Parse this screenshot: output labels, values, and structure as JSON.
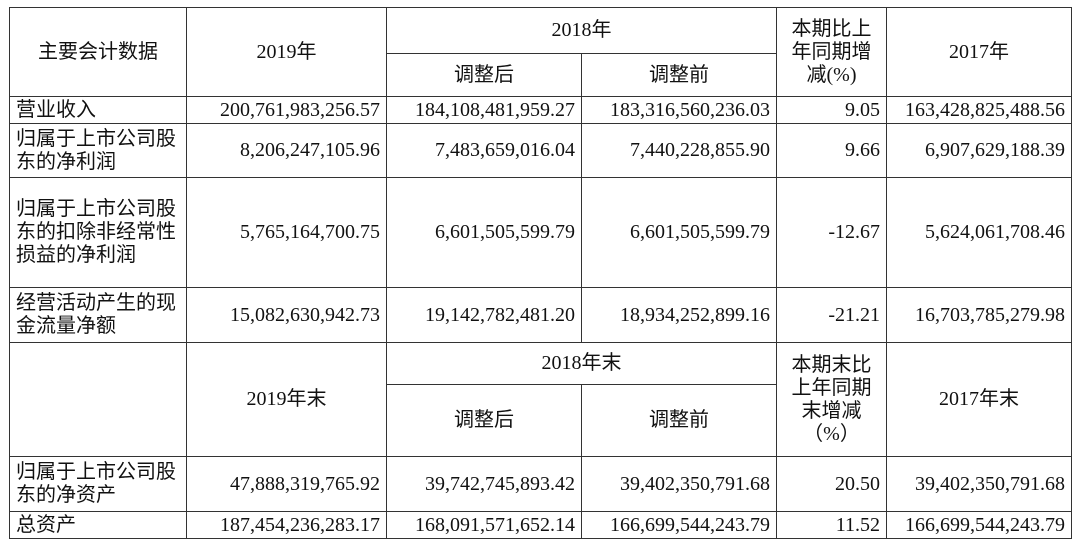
{
  "header1": {
    "col0": "主要会计数据",
    "col1": "2019年",
    "col2_group": "2018年",
    "col2a": "调整后",
    "col2b": "调整前",
    "col3": "本期比上年同期增减(%)",
    "col4": "2017年"
  },
  "header2": {
    "col1": "2019年末",
    "col2_group": "2018年末",
    "col2a": "调整后",
    "col2b": "调整前",
    "col3": "本期末比上年同期末增减（%）",
    "col4": "2017年末"
  },
  "rows1": [
    {
      "label": "营业收入",
      "v2019": "200,761,983,256.57",
      "v2018a": "184,108,481,959.27",
      "v2018b": "183,316,560,236.03",
      "chg": "9.05",
      "v2017": "163,428,825,488.56"
    },
    {
      "label": "归属于上市公司股东的净利润",
      "v2019": "8,206,247,105.96",
      "v2018a": "7,483,659,016.04",
      "v2018b": "7,440,228,855.90",
      "chg": "9.66",
      "v2017": "6,907,629,188.39"
    },
    {
      "label": "归属于上市公司股东的扣除非经常性损益的净利润",
      "v2019": "5,765,164,700.75",
      "v2018a": "6,601,505,599.79",
      "v2018b": "6,601,505,599.79",
      "chg": "-12.67",
      "v2017": "5,624,061,708.46"
    },
    {
      "label": "经营活动产生的现金流量净额",
      "v2019": "15,082,630,942.73",
      "v2018a": "19,142,782,481.20",
      "v2018b": "18,934,252,899.16",
      "chg": "-21.21",
      "v2017": "16,703,785,279.98"
    }
  ],
  "rows2": [
    {
      "label": "归属于上市公司股东的净资产",
      "v2019": "47,888,319,765.92",
      "v2018a": "39,742,745,893.42",
      "v2018b": "39,402,350,791.68",
      "chg": "20.50",
      "v2017": "39,402,350,791.68"
    },
    {
      "label": "总资产",
      "v2019": "187,454,236,283.17",
      "v2018a": "168,091,571,652.14",
      "v2018b": "166,699,544,243.79",
      "chg": "11.52",
      "v2017": "166,699,544,243.79"
    }
  ]
}
